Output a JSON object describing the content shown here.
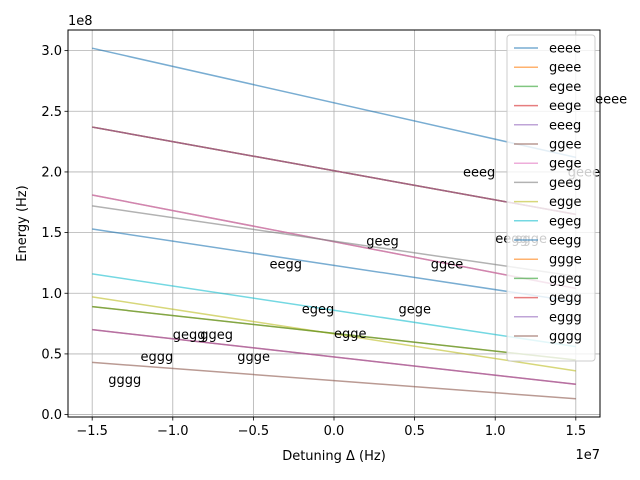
{
  "chart_data": {
    "type": "line",
    "title": "",
    "xlabel": "Detuning Δ (Hz)",
    "ylabel": "Energy (Hz)",
    "x_offset_label": "1e7",
    "y_offset_label": "1e8",
    "xlim": [
      -16500000.0,
      16500000.0
    ],
    "ylim": [
      -2000000.0,
      317000000.0
    ],
    "xticks": [
      -15000000.0,
      -10000000.0,
      -5000000.0,
      0,
      5000000.0,
      10000000.0,
      15000000.0
    ],
    "xtick_labels": [
      "−1.5",
      "−1.0",
      "−0.5",
      "0.0",
      "0.5",
      "1.0",
      "1.5"
    ],
    "yticks": [
      0,
      50000000.0,
      100000000.0,
      150000000.0,
      200000000.0,
      250000000.0,
      300000000.0
    ],
    "ytick_labels": [
      "0.0",
      "0.5",
      "1.0",
      "1.5",
      "2.0",
      "2.5",
      "3.0"
    ],
    "grid": true,
    "legend_position": "top-right",
    "series": [
      {
        "name": "eeee",
        "color": "#1f77b4",
        "x": [
          -15000000.0,
          15000000.0
        ],
        "y": [
          302000000.0,
          212000000.0
        ]
      },
      {
        "name": "geee",
        "color": "#ff7f0e",
        "x": [
          -15000000.0,
          15000000.0
        ],
        "y": [
          237000000.0,
          165000000.0
        ]
      },
      {
        "name": "egee",
        "color": "#2ca02c",
        "x": [
          -15000000.0,
          15000000.0
        ],
        "y": [
          237000000.0,
          165000000.0
        ]
      },
      {
        "name": "eege",
        "color": "#d62728",
        "x": [
          -15000000.0,
          15000000.0
        ],
        "y": [
          237000000.0,
          165000000.0
        ]
      },
      {
        "name": "eeeg",
        "color": "#9467bd",
        "x": [
          -15000000.0,
          15000000.0
        ],
        "y": [
          237000000.0,
          165000000.0
        ]
      },
      {
        "name": "ggee",
        "color": "#8c564b",
        "x": [
          -15000000.0,
          15000000.0
        ],
        "y": [
          181000000.0,
          104000000.0
        ]
      },
      {
        "name": "gege",
        "color": "#e377c2",
        "x": [
          -15000000.0,
          15000000.0
        ],
        "y": [
          181000000.0,
          104000000.0
        ]
      },
      {
        "name": "geeg",
        "color": "#7f7f7f",
        "x": [
          -15000000.0,
          15000000.0
        ],
        "y": [
          172000000.0,
          114000000.0
        ]
      },
      {
        "name": "egge",
        "color": "#bcbd22",
        "x": [
          -15000000.0,
          15000000.0
        ],
        "y": [
          97000000.0,
          36000000.0
        ]
      },
      {
        "name": "egeg",
        "color": "#17becf",
        "x": [
          -15000000.0,
          15000000.0
        ],
        "y": [
          116000000.0,
          56000000.0
        ]
      },
      {
        "name": "eegg",
        "color": "#1f77b4",
        "x": [
          -15000000.0,
          15000000.0
        ],
        "y": [
          153000000.0,
          93000000.0
        ]
      },
      {
        "name": "ggge",
        "color": "#ff7f0e",
        "x": [
          -15000000.0,
          15000000.0
        ],
        "y": [
          89000000.0,
          45000000.0
        ]
      },
      {
        "name": "ggeg",
        "color": "#2ca02c",
        "x": [
          -15000000.0,
          15000000.0
        ],
        "y": [
          89000000.0,
          45000000.0
        ]
      },
      {
        "name": "gegg",
        "color": "#d62728",
        "x": [
          -15000000.0,
          15000000.0
        ],
        "y": [
          70000000.0,
          25000000.0
        ]
      },
      {
        "name": "eggg",
        "color": "#9467bd",
        "x": [
          -15000000.0,
          15000000.0
        ],
        "y": [
          70000000.0,
          25000000.0
        ]
      },
      {
        "name": "gggg",
        "color": "#8c564b",
        "x": [
          -15000000.0,
          15000000.0
        ],
        "y": [
          43000000.0,
          13000000.0
        ]
      }
    ],
    "annotations": [
      {
        "text": "eeee",
        "x": 16200000.0,
        "y": 260000000.0
      },
      {
        "text": "geee",
        "x": 14500000.0,
        "y": 200000000.0
      },
      {
        "text": "eeeg",
        "x": 8000000.0,
        "y": 200000000.0
      },
      {
        "text": "geeg",
        "x": 2000000.0,
        "y": 143000000.0
      },
      {
        "text": "eegg",
        "x": 10000000.0,
        "y": 145000000.0
      },
      {
        "text": "egge",
        "x": 11200000.0,
        "y": 145000000.0
      },
      {
        "text": "eegg",
        "x": -4000000.0,
        "y": 124000000.0
      },
      {
        "text": "ggee",
        "x": 6000000.0,
        "y": 124000000.0
      },
      {
        "text": "egeg",
        "x": -2000000.0,
        "y": 87000000.0
      },
      {
        "text": "gege",
        "x": 4000000.0,
        "y": 87000000.0
      },
      {
        "text": "egge",
        "x": 0.0,
        "y": 67000000.0
      },
      {
        "text": "gegg",
        "x": -10000000.0,
        "y": 66000000.0
      },
      {
        "text": "ggeg",
        "x": -8300000.0,
        "y": 66000000.0
      },
      {
        "text": "eggg",
        "x": -12000000.0,
        "y": 48000000.0
      },
      {
        "text": "ggge",
        "x": -6000000.0,
        "y": 48000000.0
      },
      {
        "text": "gggg",
        "x": -14000000.0,
        "y": 29000000.0
      }
    ]
  }
}
